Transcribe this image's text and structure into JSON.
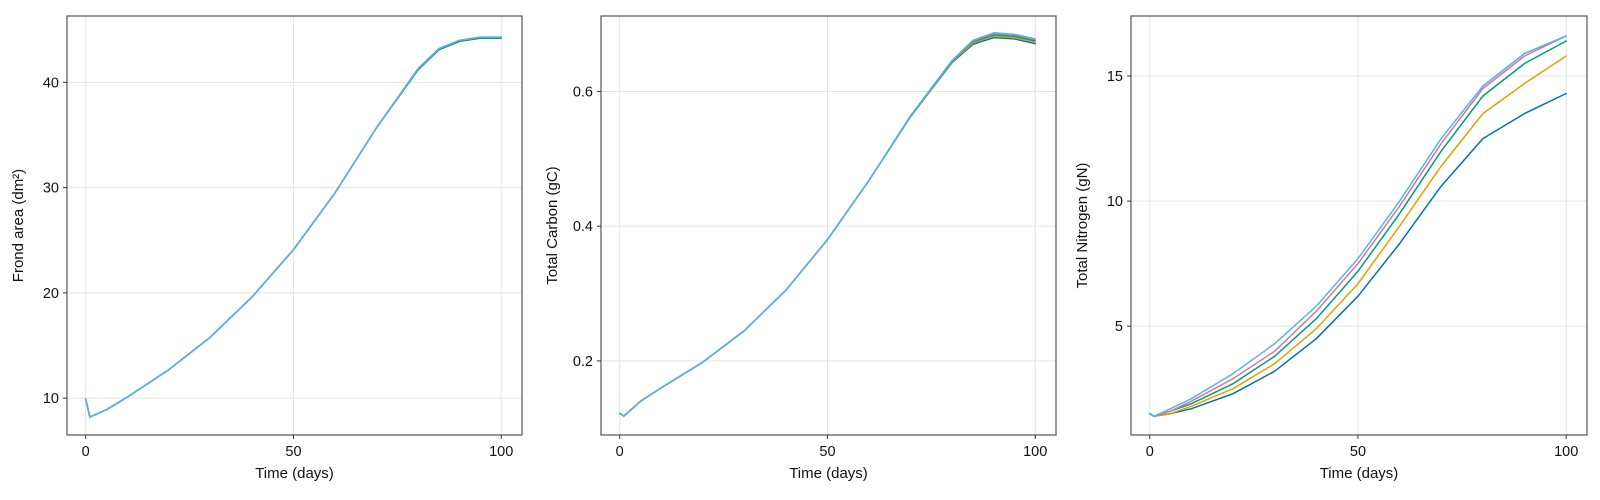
{
  "chart_data": [
    {
      "type": "line",
      "xlabel": "Time (days)",
      "ylabel": "Frond area (dm²)",
      "xlim": [
        -4.5,
        105
      ],
      "ylim": [
        6.5,
        46.3
      ],
      "xticks": [
        0,
        50,
        100
      ],
      "yticks": [
        10,
        20,
        30,
        40
      ],
      "grid": true,
      "series": [
        {
          "color": "#0072b2",
          "x": [
            0,
            1,
            5,
            10,
            20,
            30,
            40,
            50,
            60,
            70,
            80,
            85,
            90,
            95,
            100
          ],
          "y": [
            9.9,
            8.2,
            8.9,
            10.1,
            12.7,
            15.8,
            19.6,
            24.1,
            29.5,
            35.7,
            41.2,
            43.1,
            43.9,
            44.2,
            44.2
          ]
        },
        {
          "color": "#e69f00",
          "x": [
            0,
            1,
            5,
            10,
            20,
            30,
            40,
            50,
            60,
            70,
            80,
            85,
            90,
            95,
            100
          ],
          "y": [
            9.9,
            8.2,
            8.9,
            10.1,
            12.7,
            15.8,
            19.6,
            24.1,
            29.5,
            35.7,
            41.2,
            43.1,
            43.9,
            44.2,
            44.2
          ]
        },
        {
          "color": "#009e73",
          "x": [
            0,
            1,
            5,
            10,
            20,
            30,
            40,
            50,
            60,
            70,
            80,
            85,
            90,
            95,
            100
          ],
          "y": [
            9.9,
            8.2,
            8.9,
            10.1,
            12.7,
            15.8,
            19.6,
            24.1,
            29.5,
            35.7,
            41.2,
            43.1,
            43.9,
            44.2,
            44.2
          ]
        },
        {
          "color": "#cc79a7",
          "x": [
            0,
            1,
            5,
            10,
            20,
            30,
            40,
            50,
            60,
            70,
            80,
            85,
            90,
            95,
            100
          ],
          "y": [
            9.9,
            8.2,
            8.9,
            10.1,
            12.7,
            15.8,
            19.6,
            24.1,
            29.5,
            35.7,
            41.3,
            43.2,
            44.0,
            44.3,
            44.3
          ]
        },
        {
          "color": "#56b4e9",
          "x": [
            0,
            1,
            5,
            10,
            20,
            30,
            40,
            50,
            60,
            70,
            80,
            85,
            90,
            95,
            100
          ],
          "y": [
            9.9,
            8.2,
            8.9,
            10.1,
            12.7,
            15.8,
            19.6,
            24.1,
            29.5,
            35.7,
            41.3,
            43.2,
            44.0,
            44.3,
            44.3
          ]
        }
      ]
    },
    {
      "type": "line",
      "xlabel": "Time (days)",
      "ylabel": "Total Carbon (gC)",
      "xlim": [
        -4.5,
        105
      ],
      "ylim": [
        0.09,
        0.712
      ],
      "xticks": [
        0,
        50,
        100
      ],
      "yticks": [
        0.2,
        0.4,
        0.6
      ],
      "grid": true,
      "series": [
        {
          "color": "#0072b2",
          "x": [
            0,
            1,
            5,
            10,
            20,
            30,
            40,
            50,
            60,
            70,
            80,
            85,
            90,
            95,
            100
          ],
          "y": [
            0.122,
            0.118,
            0.14,
            0.16,
            0.198,
            0.245,
            0.305,
            0.38,
            0.468,
            0.563,
            0.643,
            0.67,
            0.68,
            0.678,
            0.671
          ]
        },
        {
          "color": "#e69f00",
          "x": [
            0,
            1,
            5,
            10,
            20,
            30,
            40,
            50,
            60,
            70,
            80,
            85,
            90,
            95,
            100
          ],
          "y": [
            0.122,
            0.118,
            0.14,
            0.16,
            0.198,
            0.245,
            0.305,
            0.38,
            0.468,
            0.563,
            0.644,
            0.672,
            0.682,
            0.68,
            0.673
          ]
        },
        {
          "color": "#009e73",
          "x": [
            0,
            1,
            5,
            10,
            20,
            30,
            40,
            50,
            60,
            70,
            80,
            85,
            90,
            95,
            100
          ],
          "y": [
            0.122,
            0.118,
            0.14,
            0.16,
            0.198,
            0.245,
            0.305,
            0.38,
            0.468,
            0.563,
            0.645,
            0.674,
            0.684,
            0.682,
            0.675
          ]
        },
        {
          "color": "#cc79a7",
          "x": [
            0,
            1,
            5,
            10,
            20,
            30,
            40,
            50,
            60,
            70,
            80,
            85,
            90,
            95,
            100
          ],
          "y": [
            0.122,
            0.118,
            0.14,
            0.16,
            0.198,
            0.245,
            0.305,
            0.38,
            0.468,
            0.564,
            0.646,
            0.675,
            0.686,
            0.684,
            0.677
          ]
        },
        {
          "color": "#56b4e9",
          "x": [
            0,
            1,
            5,
            10,
            20,
            30,
            40,
            50,
            60,
            70,
            80,
            85,
            90,
            95,
            100
          ],
          "y": [
            0.122,
            0.118,
            0.14,
            0.16,
            0.198,
            0.245,
            0.305,
            0.38,
            0.468,
            0.564,
            0.646,
            0.676,
            0.687,
            0.685,
            0.678
          ]
        }
      ]
    },
    {
      "type": "line",
      "xlabel": "Time (days)",
      "ylabel": "Total Nitrogen (gN)",
      "xlim": [
        -4.5,
        105
      ],
      "ylim": [
        0.65,
        17.4
      ],
      "xticks": [
        0,
        50,
        100
      ],
      "yticks": [
        5,
        10,
        15
      ],
      "grid": true,
      "series": [
        {
          "color": "#0072b2",
          "x": [
            0,
            1,
            5,
            10,
            20,
            30,
            40,
            50,
            60,
            70,
            80,
            90,
            100
          ],
          "y": [
            1.5,
            1.4,
            1.5,
            1.7,
            2.3,
            3.2,
            4.5,
            6.2,
            8.3,
            10.6,
            12.5,
            13.5,
            14.3
          ]
        },
        {
          "color": "#e69f00",
          "x": [
            0,
            1,
            5,
            10,
            20,
            30,
            40,
            50,
            60,
            70,
            80,
            90,
            100
          ],
          "y": [
            1.5,
            1.4,
            1.5,
            1.8,
            2.5,
            3.5,
            4.9,
            6.7,
            9.0,
            11.4,
            13.5,
            14.7,
            15.8
          ]
        },
        {
          "color": "#009e73",
          "x": [
            0,
            1,
            5,
            10,
            20,
            30,
            40,
            50,
            60,
            70,
            80,
            90,
            100
          ],
          "y": [
            1.5,
            1.4,
            1.6,
            1.9,
            2.7,
            3.8,
            5.3,
            7.2,
            9.5,
            12.0,
            14.2,
            15.5,
            16.4
          ]
        },
        {
          "color": "#cc79a7",
          "x": [
            0,
            1,
            5,
            10,
            20,
            30,
            40,
            50,
            60,
            70,
            80,
            90,
            100
          ],
          "y": [
            1.5,
            1.4,
            1.6,
            2.0,
            2.9,
            4.0,
            5.6,
            7.5,
            9.8,
            12.3,
            14.5,
            15.8,
            16.6
          ]
        },
        {
          "color": "#56b4e9",
          "x": [
            0,
            1,
            5,
            10,
            20,
            30,
            40,
            50,
            60,
            70,
            80,
            90,
            100
          ],
          "y": [
            1.5,
            1.4,
            1.7,
            2.1,
            3.1,
            4.3,
            5.8,
            7.7,
            10.0,
            12.5,
            14.6,
            15.9,
            16.6
          ]
        }
      ]
    }
  ]
}
